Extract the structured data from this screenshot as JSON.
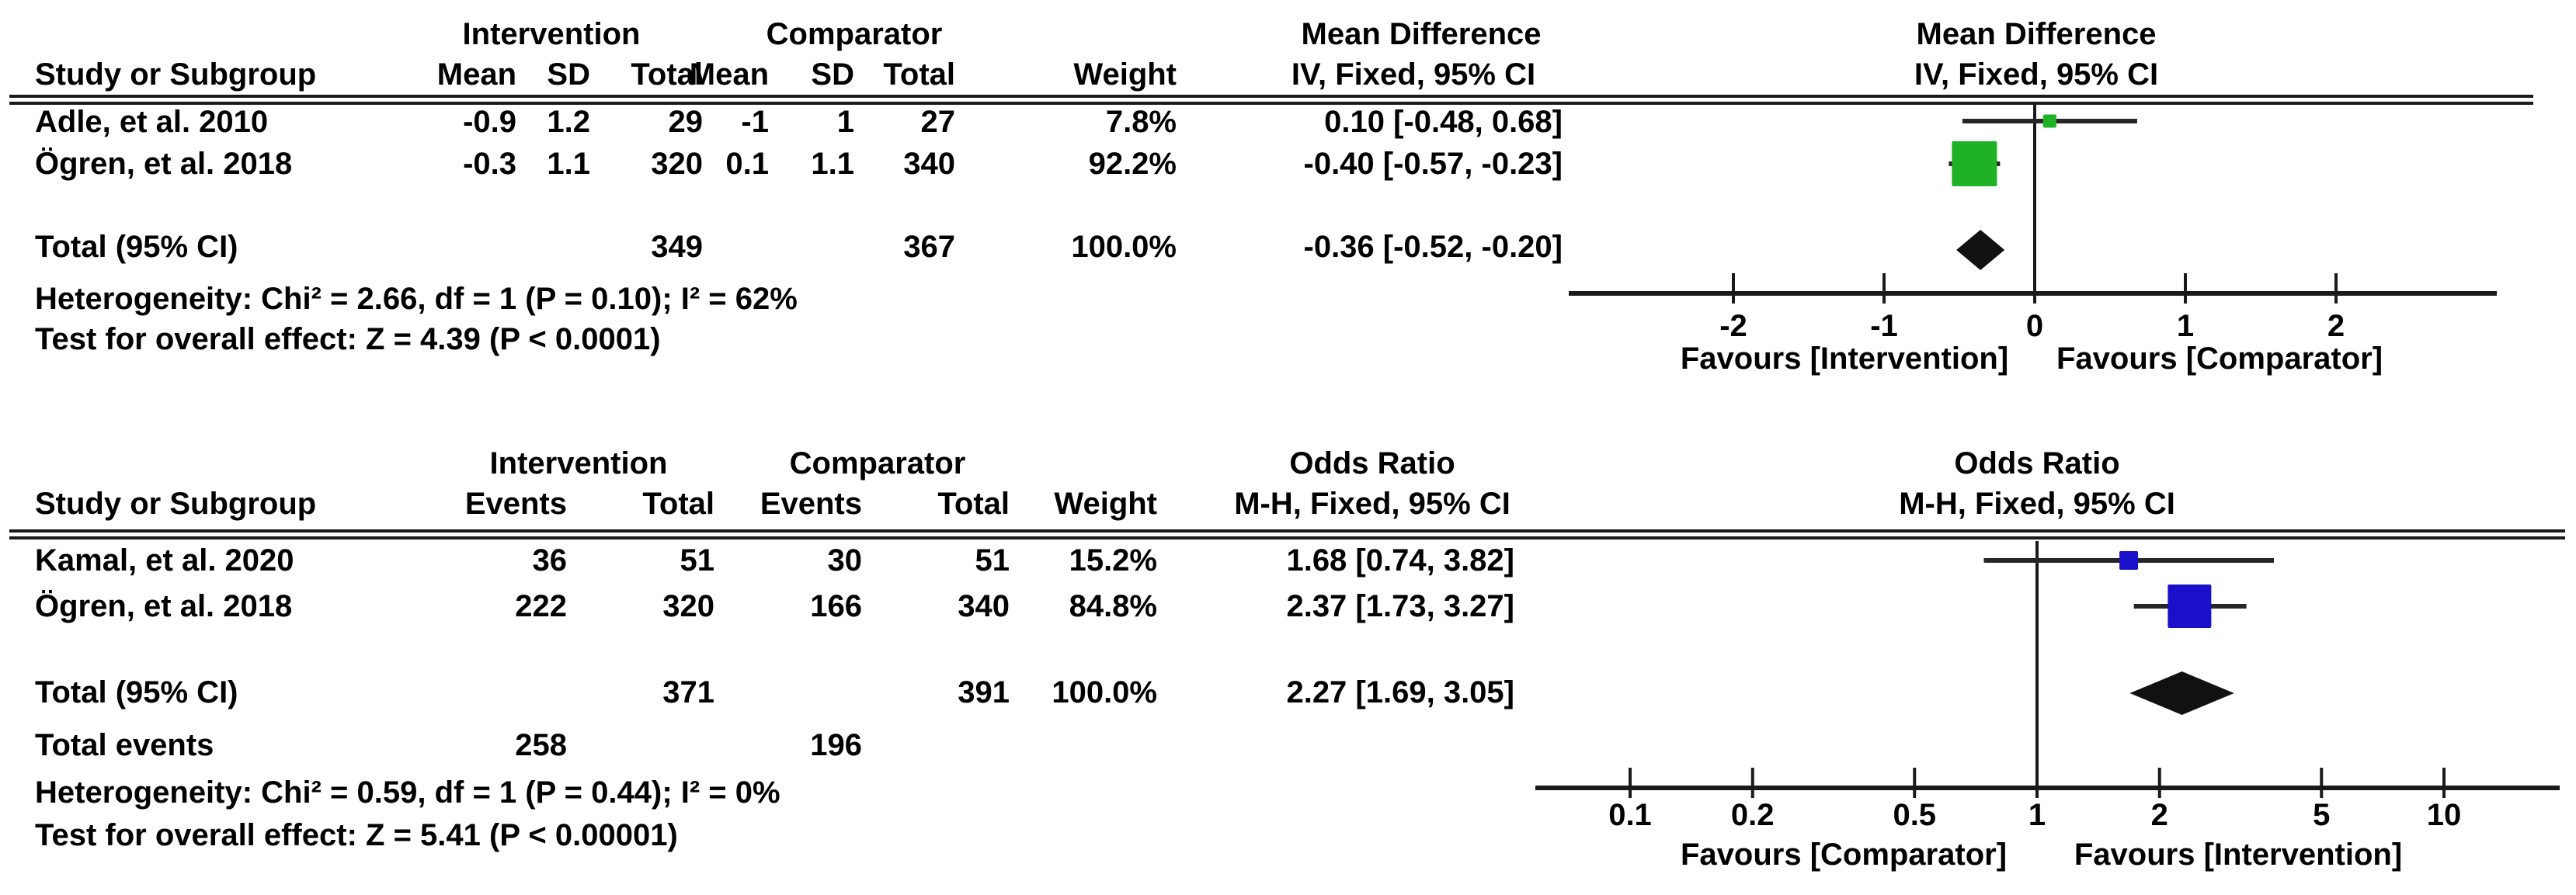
{
  "plots": [
    {
      "group_headers": {
        "col1": "Intervention",
        "col2": "Comparator",
        "effect": "Mean Difference"
      },
      "columns": {
        "study": "Study or Subgroup",
        "c1": "Mean",
        "c2": "SD",
        "c3": "Total",
        "c4": "Mean",
        "c5": "SD",
        "c6": "Total",
        "weight": "Weight",
        "effect_ci": "IV, Fixed, 95% CI"
      },
      "plot_header_line1": "Mean Difference",
      "plot_header_line2": "IV, Fixed, 95% CI",
      "rows": [
        {
          "study": "Adle, et al. 2010",
          "c1": "-0.9",
          "c2": "1.2",
          "c3": "29",
          "c4": "-1",
          "c5": "1",
          "c6": "27",
          "weight": "7.8%",
          "ci_text": "0.10 [-0.48, 0.68]"
        },
        {
          "study": "Ögren, et al. 2018",
          "c1": "-0.3",
          "c2": "1.1",
          "c3": "320",
          "c4": "0.1",
          "c5": "1.1",
          "c6": "340",
          "weight": "92.2%",
          "ci_text": "-0.40 [-0.57, -0.23]"
        }
      ],
      "total": {
        "label": "Total (95% CI)",
        "c3": "349",
        "c6": "367",
        "weight": "100.0%",
        "ci_text": "-0.36 [-0.52, -0.20]"
      },
      "heterogeneity": "Heterogeneity: Chi² = 2.66, df = 1 (P = 0.10); I² = 62%",
      "overall_effect": "Test for overall effect: Z = 4.39 (P < 0.0001)",
      "favours_left": "Favours [Intervention]",
      "favours_right": "Favours [Comparator]"
    },
    {
      "group_headers": {
        "col1": "Intervention",
        "col2": "Comparator",
        "effect": "Odds Ratio"
      },
      "columns": {
        "study": "Study or Subgroup",
        "c1": "Events",
        "c2": "Total",
        "c3": "Events",
        "c4": "Total",
        "weight": "Weight",
        "effect_ci": "M-H, Fixed, 95% CI"
      },
      "plot_header_line1": "Odds Ratio",
      "plot_header_line2": "M-H, Fixed, 95% CI",
      "rows": [
        {
          "study": "Kamal, et al. 2020",
          "c1": "36",
          "c2": "51",
          "c3": "30",
          "c4": "51",
          "weight": "15.2%",
          "ci_text": "1.68 [0.74, 3.82]"
        },
        {
          "study": "Ögren, et al. 2018",
          "c1": "222",
          "c2": "320",
          "c3": "166",
          "c4": "340",
          "weight": "84.8%",
          "ci_text": "2.37 [1.73, 3.27]"
        }
      ],
      "total": {
        "label": "Total (95% CI)",
        "c2": "371",
        "c4": "391",
        "weight": "100.0%",
        "ci_text": "2.27 [1.69, 3.05]"
      },
      "total_events": {
        "label": "Total events",
        "c1": "258",
        "c3": "196"
      },
      "heterogeneity": "Heterogeneity: Chi² = 0.59, df = 1 (P = 0.44); I² = 0%",
      "overall_effect": "Test for overall effect: Z = 5.41 (P < 0.00001)",
      "favours_left": "Favours [Comparator]",
      "favours_right": "Favours [Intervention]"
    }
  ],
  "chart_data": [
    {
      "type": "forest",
      "effect_measure": "Mean Difference",
      "method": "IV, Fixed, 95% CI",
      "scale": "linear",
      "null_value": 0,
      "ticks": [
        -2,
        -1,
        0,
        1,
        2
      ],
      "axis_range": [
        -3.1,
        3.1
      ],
      "marker_color": "#1FB226",
      "studies": [
        {
          "name": "Adle, et al. 2010",
          "estimate": 0.1,
          "ci": [
            -0.48,
            0.68
          ],
          "weight": 7.8
        },
        {
          "name": "Ögren, et al. 2018",
          "estimate": -0.4,
          "ci": [
            -0.57,
            -0.23
          ],
          "weight": 92.2
        }
      ],
      "total": {
        "estimate": -0.36,
        "ci": [
          -0.52,
          -0.2
        ],
        "weight": 100.0
      },
      "heterogeneity": {
        "chi2": 2.66,
        "df": 1,
        "p": "0.10",
        "i2": "62%"
      },
      "overall_effect": {
        "z": 4.39,
        "p": "< 0.0001"
      },
      "legend_left": "Favours [Intervention]",
      "legend_right": "Favours [Comparator]"
    },
    {
      "type": "forest",
      "effect_measure": "Odds Ratio",
      "method": "M-H, Fixed, 95% CI",
      "scale": "log",
      "null_value": 1,
      "ticks": [
        0.1,
        0.2,
        0.5,
        1,
        2,
        5,
        10
      ],
      "axis_range": [
        0.058,
        20
      ],
      "marker_color": "#1B0FC9",
      "studies": [
        {
          "name": "Kamal, et al. 2020",
          "estimate": 1.68,
          "ci": [
            0.74,
            3.82
          ],
          "weight": 15.2
        },
        {
          "name": "Ögren, et al. 2018",
          "estimate": 2.37,
          "ci": [
            1.73,
            3.27
          ],
          "weight": 84.8
        }
      ],
      "total": {
        "estimate": 2.27,
        "ci": [
          1.69,
          3.05
        ],
        "weight": 100.0
      },
      "heterogeneity": {
        "chi2": 0.59,
        "df": 1,
        "p": "0.44",
        "i2": "0%"
      },
      "overall_effect": {
        "z": 5.41,
        "p": "< 0.00001"
      },
      "legend_left": "Favours [Comparator]",
      "legend_right": "Favours [Intervention]"
    }
  ]
}
